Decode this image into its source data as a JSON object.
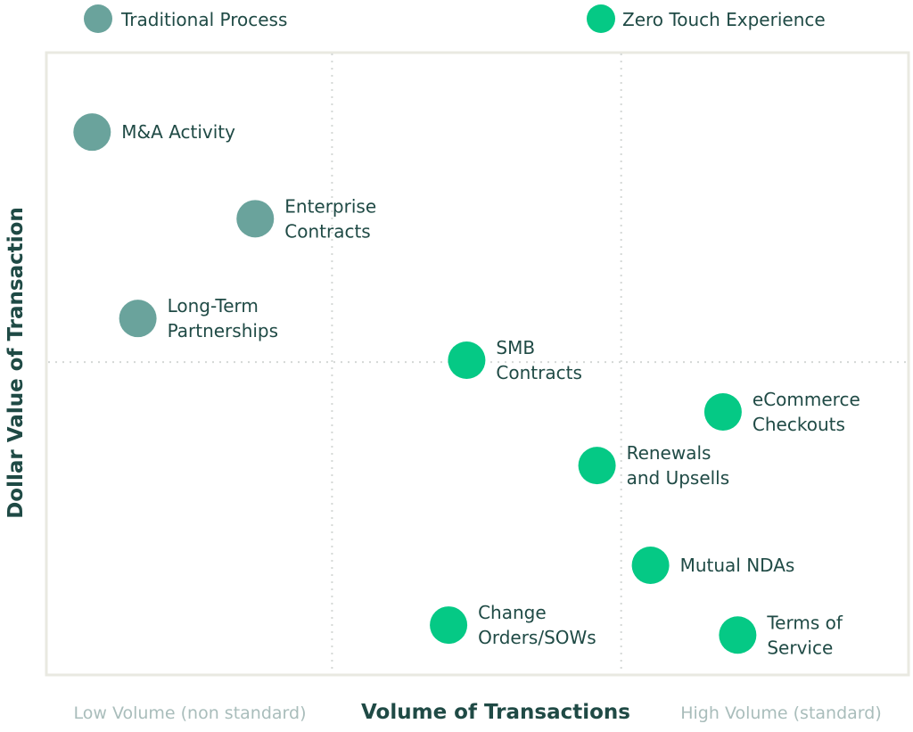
{
  "chart_data": {
    "type": "scatter",
    "xlabel": "Volume of Transactions",
    "ylabel": "Dollar Value of Transaction",
    "x_low_label": "Low Volume (non standard)",
    "x_high_label": "High Volume (standard)",
    "xlim": [
      0,
      100
    ],
    "ylim": [
      0,
      100
    ],
    "grid": false,
    "quadrant_dividers": {
      "x": [
        33.1,
        66.6
      ],
      "y": [
        50.2
      ]
    },
    "legend_placement": "top",
    "series": [
      {
        "name": "Traditional Process",
        "color": "#6aa39c",
        "points": [
          {
            "label": [
              "M&A Activity"
            ],
            "x": 5.3,
            "y": 87.1
          },
          {
            "label": [
              "Enterprise",
              "Contracts"
            ],
            "x": 24.2,
            "y": 73.2
          },
          {
            "label": [
              "Long-Term",
              "Partnerships"
            ],
            "x": 10.6,
            "y": 57.2
          }
        ]
      },
      {
        "name": "Zero Touch Experience",
        "color": "#05c985",
        "points": [
          {
            "label": [
              "SMB",
              "Contracts"
            ],
            "x": 48.7,
            "y": 50.5
          },
          {
            "label": [
              "eCommerce",
              "Checkouts"
            ],
            "x": 78.4,
            "y": 42.2
          },
          {
            "label": [
              "Renewals",
              "and Upsells"
            ],
            "x": 63.8,
            "y": 33.6
          },
          {
            "label": [
              "Mutual NDAs"
            ],
            "x": 70.0,
            "y": 17.6
          },
          {
            "label": [
              "Change",
              "Orders/SOWs"
            ],
            "x": 46.6,
            "y": 8.0
          },
          {
            "label": [
              "Terms of",
              "Service"
            ],
            "x": 80.1,
            "y": 6.4
          }
        ]
      }
    ]
  }
}
